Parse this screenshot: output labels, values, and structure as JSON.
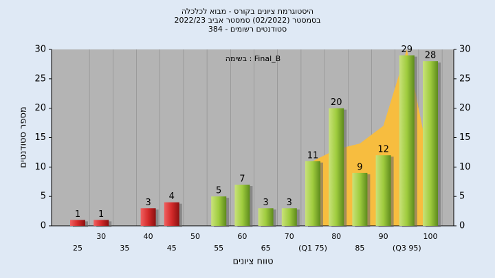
{
  "chart_data": {
    "type": "bar",
    "title": "היסטוגרמת ציונים בקורס - מבוא לכלכלה",
    "subtitle": "בסמסטר (02/2022) סמסטר אביב 2022/23",
    "subtitle2": "סטודנטים רשומים - 384",
    "annotation": "בשימה : Final_B",
    "x_label": "טווח ציונים",
    "y_label": "מספר סטודנטים",
    "categories": [
      "25",
      "30",
      "35",
      "40",
      "45",
      "50",
      "55",
      "60",
      "65",
      "70",
      "(Q1 75)",
      "80",
      "85",
      "90",
      "(Q3 95)",
      "100"
    ],
    "values": [
      1,
      1,
      0,
      3,
      4,
      0,
      5,
      7,
      3,
      3,
      11,
      20,
      9,
      12,
      29,
      28
    ],
    "colors": [
      "#d42a2a",
      "#d42a2a",
      "#d42a2a",
      "#d42a2a",
      "#d42a2a",
      "#d42a2a",
      "#9fcc3e",
      "#9fcc3e",
      "#9fcc3e",
      "#9fcc3e",
      "#9fcc3e",
      "#9fcc3e",
      "#9fcc3e",
      "#9fcc3e",
      "#9fcc3e",
      "#9fcc3e"
    ],
    "area_values": [
      null,
      null,
      null,
      null,
      null,
      null,
      null,
      null,
      null,
      null,
      11,
      13,
      14,
      17,
      30,
      10
    ],
    "area_color": "#f7bd3f",
    "ylim": [
      0,
      30
    ],
    "yticks": [
      0,
      5,
      10,
      15,
      20,
      25,
      30
    ],
    "y2lim": [
      0,
      30
    ],
    "y2ticks": [
      0,
      5,
      10,
      15,
      20,
      25,
      30
    ],
    "grid": true
  }
}
